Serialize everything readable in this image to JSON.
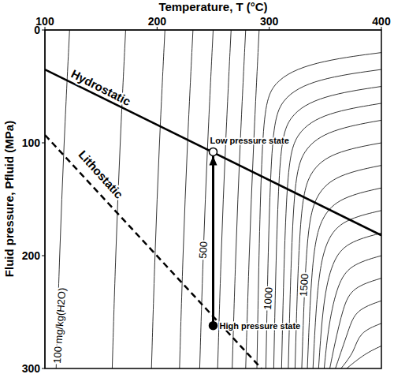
{
  "chart_data": {
    "type": "line",
    "x_label": "Temperature, T (°C)",
    "y_label": "Fluid pressure, Pfluid (MPa)",
    "xlim": [
      100,
      400
    ],
    "xticks": [
      100,
      200,
      300,
      400
    ],
    "ylim": [
      300,
      0
    ],
    "yticks": [
      0,
      100,
      200,
      300
    ],
    "series": [
      {
        "name": "Hydrostatic",
        "color": "#000000",
        "line_style": "solid",
        "x": [
          100,
          400
        ],
        "y": [
          35,
          182
        ]
      },
      {
        "name": "Lithostatic",
        "color": "#000000",
        "line_style": "dashed",
        "x": [
          100,
          293
        ],
        "y": [
          93,
          300
        ]
      }
    ],
    "contours": [
      {
        "level": 100,
        "x": [
          110,
          113,
          117,
          122
        ],
        "y": [
          300,
          200,
          100,
          0
        ]
      },
      {
        "level": 200,
        "x": [
          160,
          163,
          167,
          172
        ],
        "y": [
          300,
          200,
          100,
          0
        ]
      },
      {
        "level": 300,
        "x": [
          195,
          198,
          202,
          207
        ],
        "y": [
          300,
          200,
          100,
          0
        ]
      },
      {
        "level": 400,
        "x": [
          220,
          223,
          227,
          232
        ],
        "y": [
          300,
          200,
          100,
          0
        ]
      },
      {
        "level": 500,
        "x": [
          238,
          241,
          245,
          250
        ],
        "y": [
          300,
          200,
          100,
          0
        ]
      },
      {
        "level": 600,
        "x": [
          254,
          257,
          261,
          266
        ],
        "y": [
          300,
          200,
          100,
          0
        ]
      },
      {
        "level": 700,
        "x": [
          267,
          270,
          274,
          279
        ],
        "y": [
          300,
          200,
          100,
          0
        ]
      },
      {
        "level": 800,
        "x": [
          279,
          282,
          286,
          291
        ],
        "y": [
          300,
          200,
          100,
          0
        ]
      },
      {
        "level": 900,
        "x": [
          289,
          293,
          301,
          339,
          400
        ],
        "y": [
          300,
          80,
          45,
          28,
          20
        ]
      },
      {
        "level": 1000,
        "x": [
          297,
          301,
          309,
          342,
          400
        ],
        "y": [
          300,
          95,
          60,
          43,
          35
        ]
      },
      {
        "level": 1100,
        "x": [
          304,
          308,
          316,
          347,
          400
        ],
        "y": [
          300,
          110,
          75,
          58,
          50
        ]
      },
      {
        "level": 1200,
        "x": [
          311,
          315,
          323,
          351,
          400
        ],
        "y": [
          300,
          125,
          90,
          73,
          65
        ]
      },
      {
        "level": 1300,
        "x": [
          317,
          321,
          329,
          355,
          400
        ],
        "y": [
          300,
          140,
          105,
          88,
          80
        ]
      },
      {
        "level": 1400,
        "x": [
          323,
          327,
          335,
          357,
          400
        ],
        "y": [
          300,
          160,
          125,
          108,
          100
        ]
      },
      {
        "level": 1500,
        "x": [
          329,
          333,
          341,
          361,
          400
        ],
        "y": [
          300,
          180,
          145,
          128,
          120
        ]
      },
      {
        "level": 1600,
        "x": [
          334,
          338,
          346,
          364,
          400
        ],
        "y": [
          300,
          200,
          165,
          148,
          140
        ]
      },
      {
        "level": 1700,
        "x": [
          339,
          343,
          351,
          366,
          400
        ],
        "y": [
          300,
          220,
          185,
          168,
          160
        ]
      },
      {
        "level": 1800,
        "x": [
          344,
          348,
          356,
          369,
          400
        ],
        "y": [
          300,
          240,
          205,
          188,
          180
        ]
      },
      {
        "level": 1900,
        "x": [
          349,
          353,
          361,
          372,
          400
        ],
        "y": [
          300,
          260,
          225,
          208,
          200
        ]
      },
      {
        "level": 2000,
        "x": [
          354,
          358,
          366,
          374,
          400
        ],
        "y": [
          300,
          280,
          245,
          228,
          220
        ]
      },
      {
        "level": 2100,
        "x": [
          359,
          371,
          377,
          400
        ],
        "y": [
          300,
          265,
          248,
          240
        ]
      },
      {
        "level": 2200,
        "x": [
          364,
          376,
          380,
          400
        ],
        "y": [
          300,
          285,
          268,
          260
        ]
      },
      {
        "level": 2300,
        "x": [
          369,
          385,
          400
        ],
        "y": [
          300,
          287,
          280
        ]
      }
    ],
    "points": [
      {
        "name": "Low pressure state",
        "x": 250,
        "y": 108,
        "marker": "open",
        "color": "#000000"
      },
      {
        "name": "High pressure state",
        "x": 250,
        "y": 262,
        "marker": "filled",
        "color": "#000000"
      }
    ],
    "annotations": [
      {
        "text": "Hydrostatic",
        "x": 150,
        "y": 51
      },
      {
        "text": "Lithostatic",
        "x": 150,
        "y": 128
      },
      {
        "text": "100 mg/kg(H2O)",
        "x": 113,
        "y": 262
      },
      {
        "text": "500",
        "x": 241,
        "y": 195
      },
      {
        "text": "1000",
        "x": 299,
        "y": 238
      },
      {
        "text": "1500",
        "x": 331,
        "y": 226
      }
    ]
  }
}
